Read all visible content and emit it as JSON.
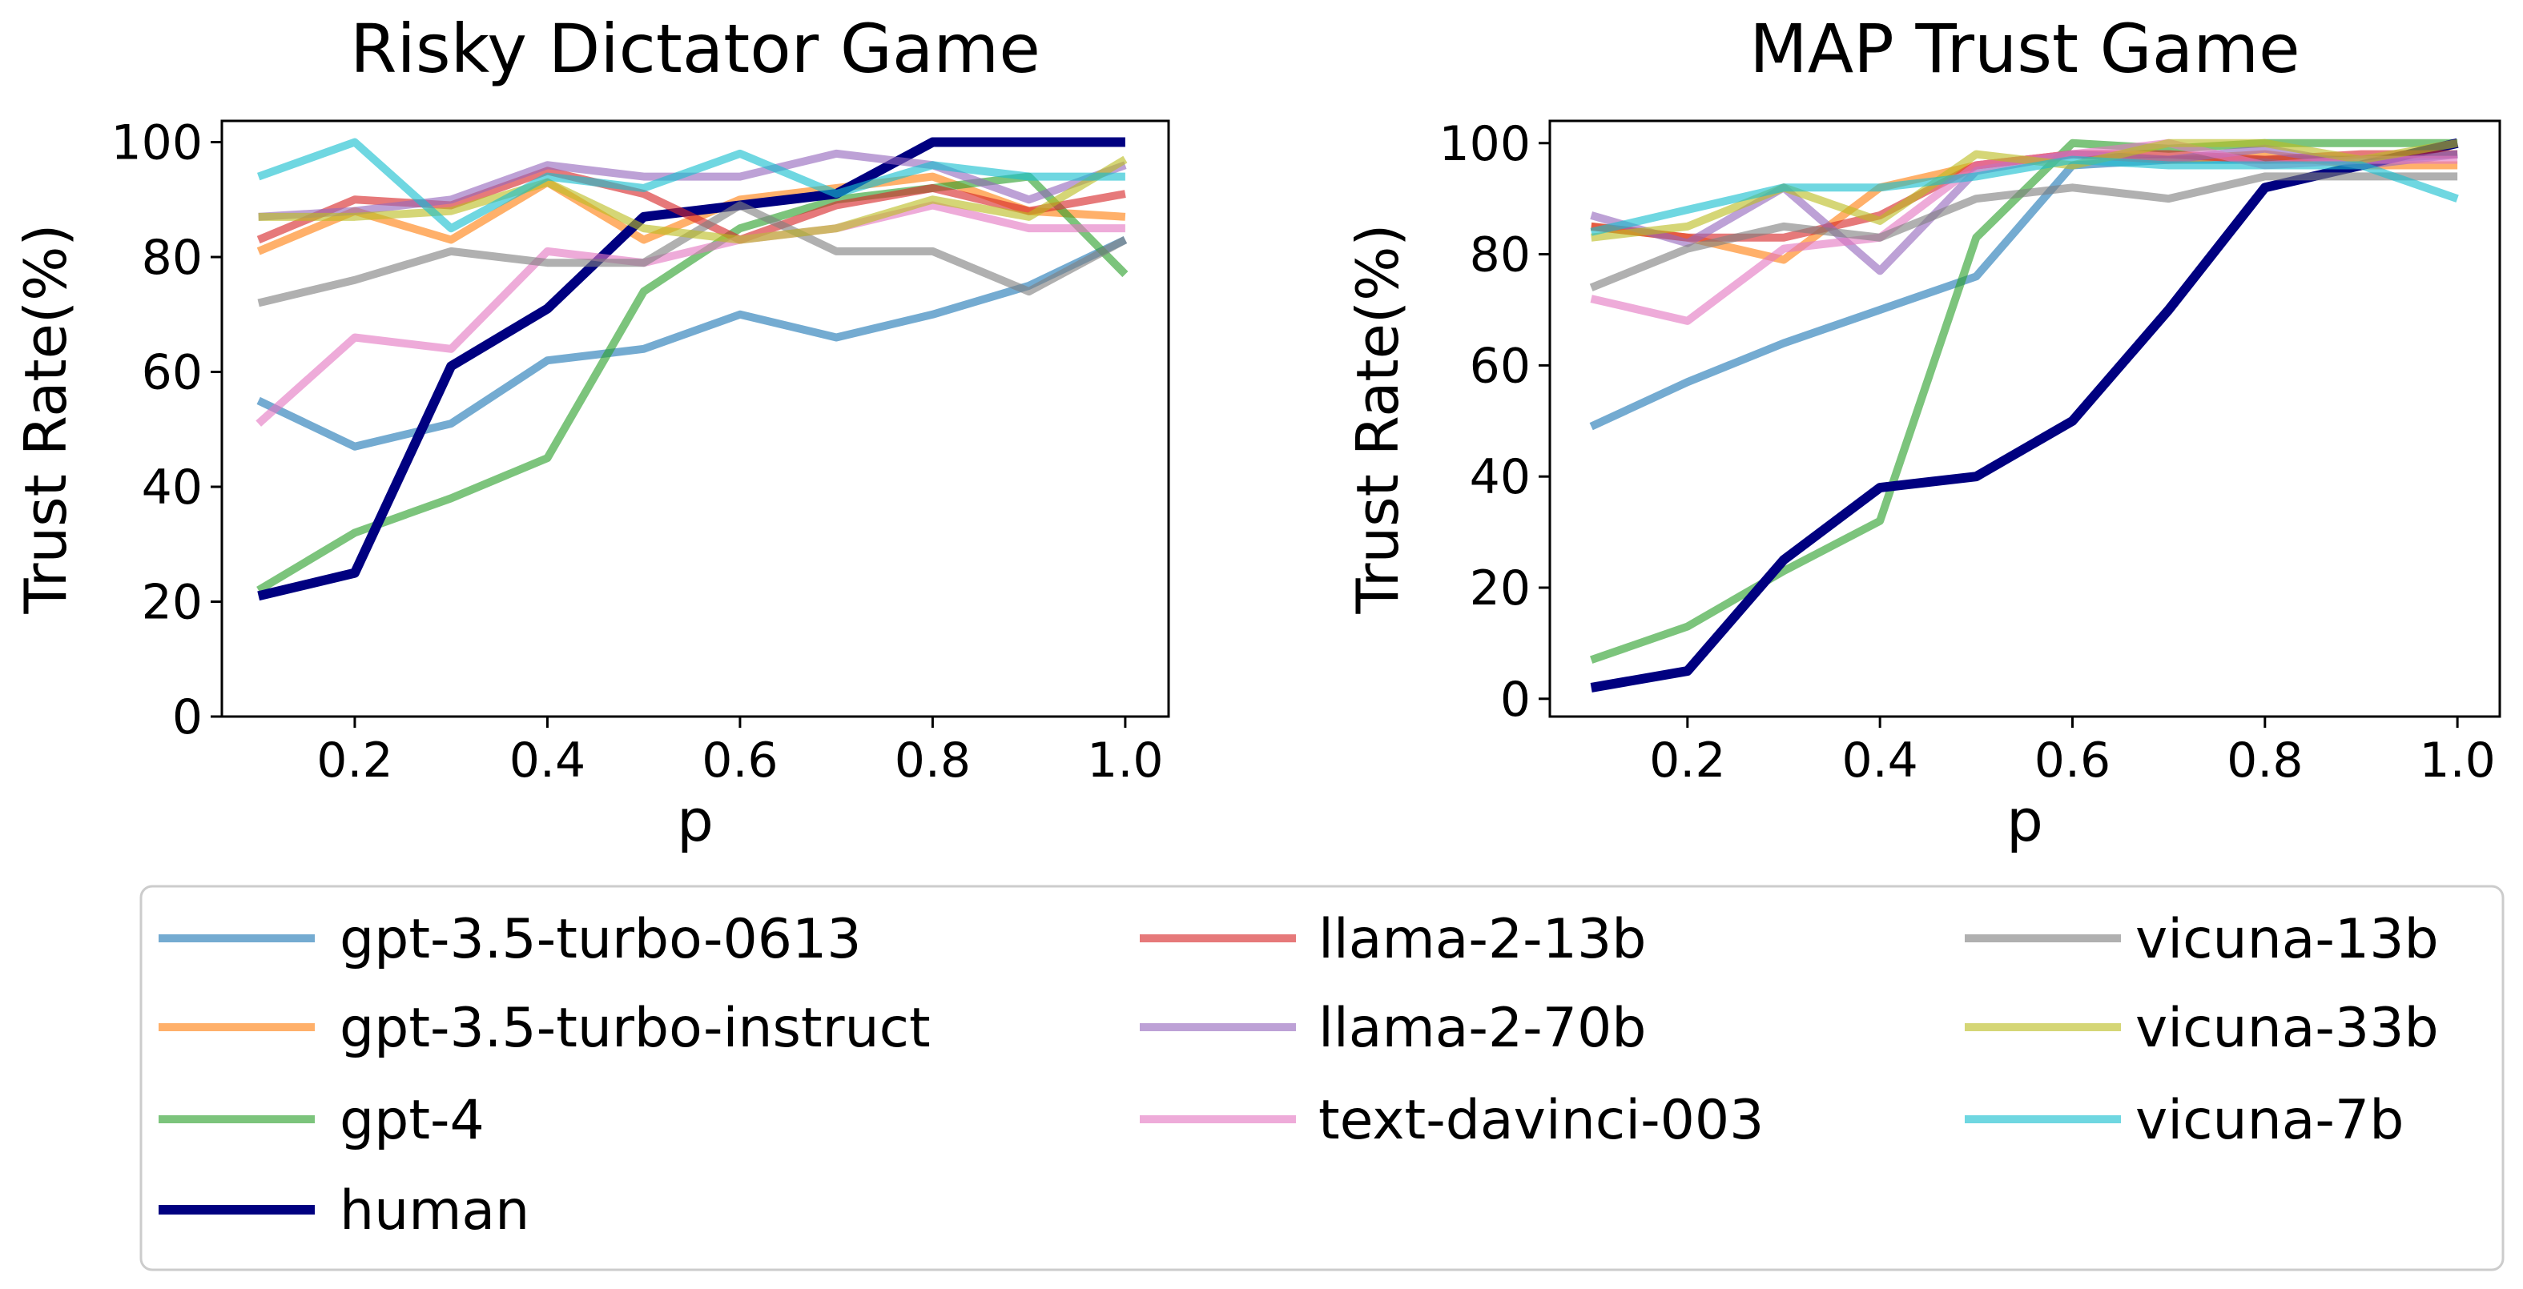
{
  "chart_data": [
    {
      "type": "line",
      "title": "Risky Dictator Game",
      "xlabel": "p",
      "ylabel": "Trust Rate(%)",
      "x": [
        0.1,
        0.2,
        0.3,
        0.4,
        0.5,
        0.6,
        0.7,
        0.8,
        0.9,
        1.0
      ],
      "xlim": [
        0.062,
        1.045
      ],
      "ylim": [
        0,
        103.7
      ],
      "xticks": [
        "0.2",
        "0.4",
        "0.6",
        "0.8",
        "1.0"
      ],
      "yticks": [
        "0",
        "20",
        "40",
        "60",
        "80",
        "100"
      ],
      "grid": false,
      "series": [
        {
          "name": "gpt-3.5-turbo-0613",
          "values": [
            55,
            47,
            51,
            62,
            64,
            70,
            66,
            70,
            75,
            83
          ]
        },
        {
          "name": "gpt-3.5-turbo-instruct",
          "values": [
            81,
            88,
            83,
            93,
            83,
            90,
            92,
            94,
            88,
            87
          ]
        },
        {
          "name": "gpt-4",
          "values": [
            22,
            32,
            38,
            45,
            74,
            85,
            90,
            92,
            94,
            77
          ]
        },
        {
          "name": "human",
          "values": [
            21,
            25,
            61,
            71,
            87,
            89,
            91,
            100,
            100,
            100
          ]
        },
        {
          "name": "llama-2-13b",
          "values": [
            83,
            90,
            89,
            95,
            91,
            83,
            89,
            92,
            88,
            91
          ]
        },
        {
          "name": "llama-2-70b",
          "values": [
            87,
            88,
            90,
            96,
            94,
            94,
            98,
            96,
            90,
            96
          ]
        },
        {
          "name": "text-davinci-003",
          "values": [
            51,
            66,
            64,
            81,
            79,
            83,
            85,
            89,
            85,
            85
          ]
        },
        {
          "name": "vicuna-13b",
          "values": [
            72,
            76,
            81,
            79,
            79,
            89,
            81,
            81,
            74,
            83
          ]
        },
        {
          "name": "vicuna-33b",
          "values": [
            87,
            87,
            88,
            93,
            85,
            83,
            85,
            90,
            87,
            97
          ]
        },
        {
          "name": "vicuna-7b",
          "values": [
            94,
            100,
            85,
            94,
            92,
            98,
            91,
            96,
            94,
            94
          ]
        }
      ]
    },
    {
      "type": "line",
      "title": "MAP Trust Game",
      "xlabel": "p",
      "ylabel": "Trust Rate(%)",
      "x": [
        0.1,
        0.2,
        0.3,
        0.4,
        0.5,
        0.6,
        0.7,
        0.8,
        0.9,
        1.0
      ],
      "xlim": [
        0.057,
        1.044
      ],
      "ylim": [
        -3.2,
        104
      ],
      "xticks": [
        "0.2",
        "0.4",
        "0.6",
        "0.8",
        "1.0"
      ],
      "yticks": [
        "0",
        "20",
        "40",
        "60",
        "80",
        "100"
      ],
      "grid": false,
      "series": [
        {
          "name": "gpt-3.5-turbo-0613",
          "values": [
            49,
            57,
            64,
            70,
            76,
            96,
            97,
            97,
            97,
            98
          ]
        },
        {
          "name": "gpt-3.5-turbo-instruct",
          "values": [
            85,
            83,
            79,
            92,
            96,
            98,
            97,
            98,
            96,
            96
          ]
        },
        {
          "name": "gpt-4",
          "values": [
            7,
            13,
            23,
            32,
            83,
            100,
            99,
            100,
            100,
            100
          ]
        },
        {
          "name": "human",
          "values": [
            2,
            5,
            25,
            38,
            40,
            50,
            70,
            92,
            96,
            100
          ]
        },
        {
          "name": "llama-2-13b",
          "values": [
            85,
            83,
            83,
            87,
            96,
            98,
            98,
            97,
            98,
            98
          ]
        },
        {
          "name": "llama-2-70b",
          "values": [
            87,
            82,
            92,
            77,
            95,
            98,
            97,
            99,
            96,
            98
          ]
        },
        {
          "name": "text-davinci-003",
          "values": [
            72,
            68,
            81,
            83,
            96,
            98,
            100,
            96,
            97,
            97
          ]
        },
        {
          "name": "vicuna-13b",
          "values": [
            74,
            81,
            85,
            83,
            90,
            92,
            90,
            94,
            94,
            94
          ]
        },
        {
          "name": "vicuna-33b",
          "values": [
            83,
            85,
            92,
            86,
            98,
            96,
            100,
            100,
            97,
            100
          ]
        },
        {
          "name": "vicuna-7b",
          "values": [
            84,
            88,
            92,
            92,
            94,
            97,
            96,
            96,
            96,
            90
          ]
        }
      ]
    }
  ],
  "colors": {
    "gpt-3.5-turbo-0613": "#1f77b4",
    "gpt-3.5-turbo-instruct": "#ff7f0e",
    "gpt-4": "#2ca02c",
    "human": "#000080",
    "llama-2-13b": "#d62728",
    "llama-2-70b": "#9467bd",
    "text-davinci-003": "#e377c2",
    "vicuna-13b": "#7f7f7f",
    "vicuna-33b": "#bcbd22",
    "vicuna-7b": "#17becf"
  },
  "legend": {
    "placement": "bottom",
    "entries": [
      "gpt-3.5-turbo-0613",
      "gpt-3.5-turbo-instruct",
      "gpt-4",
      "human",
      "llama-2-13b",
      "llama-2-70b",
      "text-davinci-003",
      "vicuna-13b",
      "vicuna-33b",
      "vicuna-7b"
    ]
  }
}
